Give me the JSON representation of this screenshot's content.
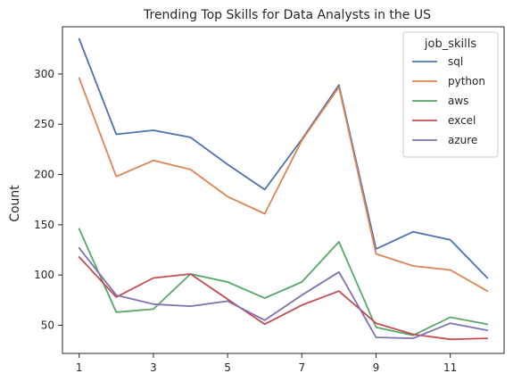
{
  "chart_data": {
    "type": "line",
    "title": "Trending Top Skills for Data Analysts in the US",
    "xlabel": "",
    "ylabel": "Count",
    "x": [
      1,
      2,
      3,
      4,
      5,
      6,
      7,
      8,
      9,
      10,
      11,
      12
    ],
    "x_ticks": [
      1,
      3,
      5,
      7,
      9,
      11
    ],
    "y_ticks": [
      50,
      100,
      150,
      200,
      250,
      300
    ],
    "xlim": [
      0.55,
      12.45
    ],
    "ylim": [
      22,
      347
    ],
    "grid": false,
    "legend": {
      "title": "job_skills",
      "placement": "upper-right"
    },
    "series": [
      {
        "name": "sql",
        "color": "#4c72b0",
        "values": [
          335,
          240,
          244,
          237,
          210,
          185,
          235,
          289,
          126,
          143,
          135,
          97
        ]
      },
      {
        "name": "python",
        "color": "#dd8452",
        "values": [
          296,
          198,
          214,
          205,
          178,
          161,
          234,
          287,
          121,
          109,
          105,
          84
        ]
      },
      {
        "name": "aws",
        "color": "#55a868",
        "values": [
          146,
          63,
          66,
          101,
          93,
          77,
          93,
          133,
          48,
          40,
          58,
          51
        ]
      },
      {
        "name": "excel",
        "color": "#c44e52",
        "values": [
          118,
          78,
          97,
          101,
          76,
          51,
          70,
          84,
          52,
          41,
          36,
          37
        ]
      },
      {
        "name": "azure",
        "color": "#8172b3",
        "values": [
          127,
          80,
          71,
          69,
          74,
          55,
          80,
          103,
          38,
          37,
          52,
          45
        ]
      }
    ]
  }
}
